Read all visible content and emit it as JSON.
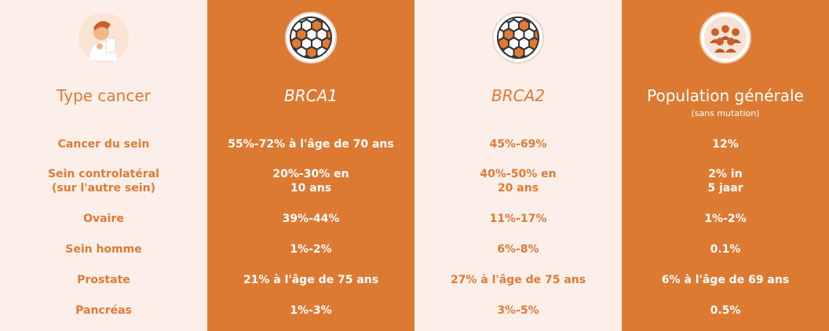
{
  "table": {
    "columns": [
      {
        "header": "Type cancer",
        "cells": [
          [
            "Cancer du sein"
          ],
          [
            "Sein controlatéral",
            "(sur l'autre sein)"
          ],
          [
            "Ovaire"
          ],
          [
            "Sein homme"
          ],
          [
            "Prostate"
          ],
          [
            "Pancréas"
          ]
        ]
      },
      {
        "header": "BRCA1",
        "cells": [
          [
            "55%-72% à l'âge de 70 ans"
          ],
          [
            "20%-30% en",
            "10 ans"
          ],
          [
            "39%-44%"
          ],
          [
            "1%-2%"
          ],
          [
            "21% à l'âge de 75 ans"
          ],
          [
            "1%-3%"
          ]
        ]
      },
      {
        "header": "BRCA2",
        "cells": [
          [
            "45%-69%"
          ],
          [
            "40%-50% en",
            "20 ans"
          ],
          [
            "11%-17%"
          ],
          [
            "6%-8%"
          ],
          [
            "27% à l'âge de 75 ans"
          ],
          [
            "3%-5%"
          ]
        ]
      },
      {
        "header": "Population générale",
        "subheader": "(sans mutation)",
        "cells": [
          [
            "12%"
          ],
          [
            "2% in",
            "5 jaar"
          ],
          [
            "1%-2%"
          ],
          [
            "0.1%"
          ],
          [
            "6% à l'âge de 69 ans"
          ],
          [
            "0.5%"
          ]
        ]
      }
    ]
  }
}
